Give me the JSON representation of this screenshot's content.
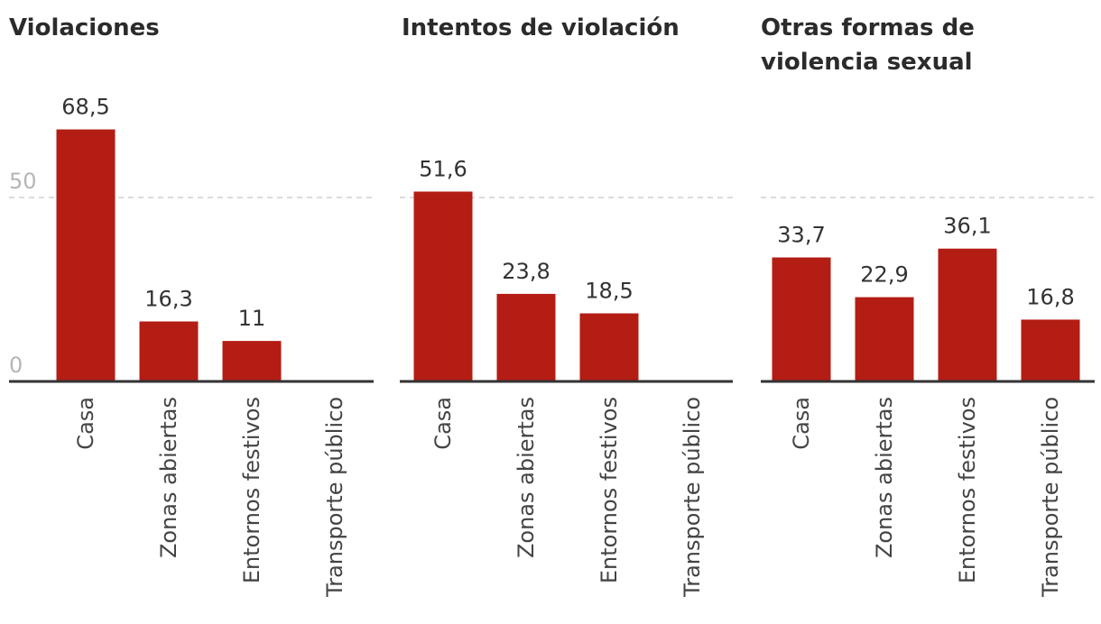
{
  "chart_data": [
    {
      "type": "bar",
      "title": "Violaciones",
      "categories": [
        "Casa",
        "Zonas abiertas",
        "Entornos festivos",
        "Transporte público"
      ],
      "values": [
        68.5,
        16.3,
        11,
        null
      ],
      "value_labels": [
        "68,5",
        "16,3",
        "11",
        ""
      ],
      "y_ticks": [
        0,
        50
      ],
      "y_tick_labels": [
        "0",
        "50"
      ],
      "ylim": [
        0,
        80
      ],
      "bar_color": "#b31d14"
    },
    {
      "type": "bar",
      "title": "Intentos de violación",
      "categories": [
        "Casa",
        "Zonas abiertas",
        "Entornos festivos",
        "Transporte público"
      ],
      "values": [
        51.6,
        23.8,
        18.5,
        null
      ],
      "value_labels": [
        "51,6",
        "23,8",
        "18,5",
        ""
      ],
      "ylim": [
        0,
        80
      ],
      "bar_color": "#b31d14"
    },
    {
      "type": "bar",
      "title": "Otras formas de violencia sexual",
      "categories": [
        "Casa",
        "Zonas abiertas",
        "Entornos festivos",
        "Transporte público"
      ],
      "values": [
        33.7,
        22.9,
        36.1,
        16.8
      ],
      "value_labels": [
        "33,7",
        "22,9",
        "36,1",
        "16,8"
      ],
      "ylim": [
        0,
        80
      ],
      "bar_color": "#b31d14"
    }
  ]
}
